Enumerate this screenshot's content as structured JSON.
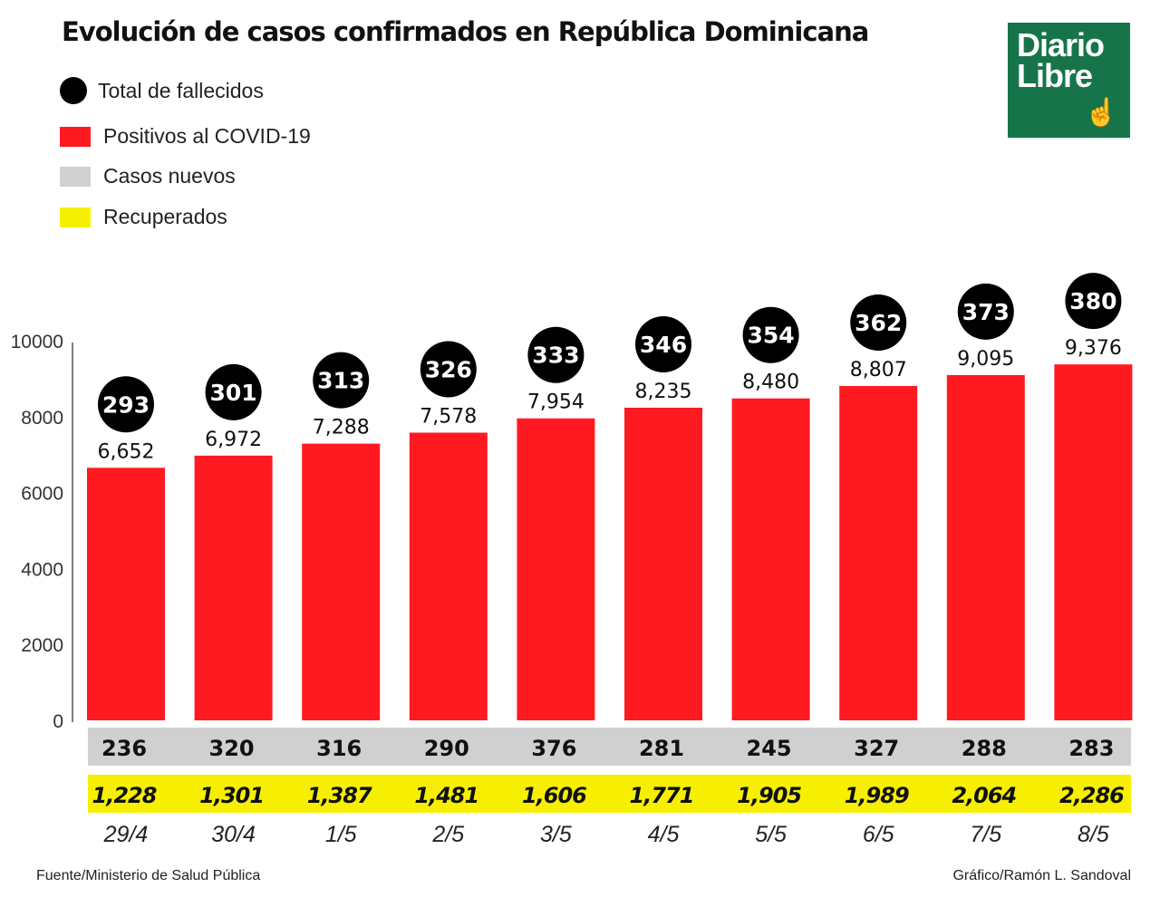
{
  "title": "Evolución de casos confirmados en República Dominicana",
  "logo": {
    "text": "Diario Libre",
    "color": "#17744a"
  },
  "legend": [
    {
      "label": "Total de fallecidos",
      "color": "#000000",
      "shape": "circle"
    },
    {
      "label": "Positivos al COVID-19",
      "color": "#ff1a22",
      "shape": "square"
    },
    {
      "label": "Casos nuevos",
      "color": "#d0d0d0",
      "shape": "square"
    },
    {
      "label": "Recuperados",
      "color": "#f6f000",
      "shape": "square"
    }
  ],
  "footer": {
    "source": "Fuente/Ministerio de Salud Pública",
    "credit": "Gráfico/Ramón L. Sandoval"
  },
  "chart_data": {
    "type": "bar",
    "categories": [
      "29/4",
      "30/4",
      "1/5",
      "2/5",
      "3/5",
      "4/5",
      "5/5",
      "6/5",
      "7/5",
      "8/5"
    ],
    "ylim": [
      0,
      10000
    ],
    "yticks": [
      "0",
      "2000",
      "4000",
      "6000",
      "8000",
      "10000"
    ],
    "grid": false,
    "series": [
      {
        "name": "Positivos al COVID-19",
        "values": [
          6652,
          6972,
          7288,
          7578,
          7954,
          8235,
          8480,
          8807,
          9095,
          9376
        ],
        "labels": [
          "6,652",
          "6,972",
          "7,288",
          "7,578",
          "7,954",
          "8,235",
          "8,480",
          "8,807",
          "9,095",
          "9,376"
        ]
      },
      {
        "name": "Total de fallecidos",
        "values": [
          293,
          301,
          313,
          326,
          333,
          346,
          354,
          362,
          373,
          380
        ]
      },
      {
        "name": "Casos nuevos",
        "values": [
          236,
          320,
          316,
          290,
          376,
          281,
          245,
          327,
          288,
          283
        ]
      },
      {
        "name": "Recuperados",
        "values": [
          1228,
          1301,
          1387,
          1481,
          1606,
          1771,
          1905,
          1989,
          2064,
          2286
        ],
        "labels": [
          "1,228",
          "1,301",
          "1,387",
          "1,481",
          "1,606",
          "1,771",
          "1,905",
          "1,989",
          "2,064",
          "2,286"
        ]
      }
    ]
  }
}
